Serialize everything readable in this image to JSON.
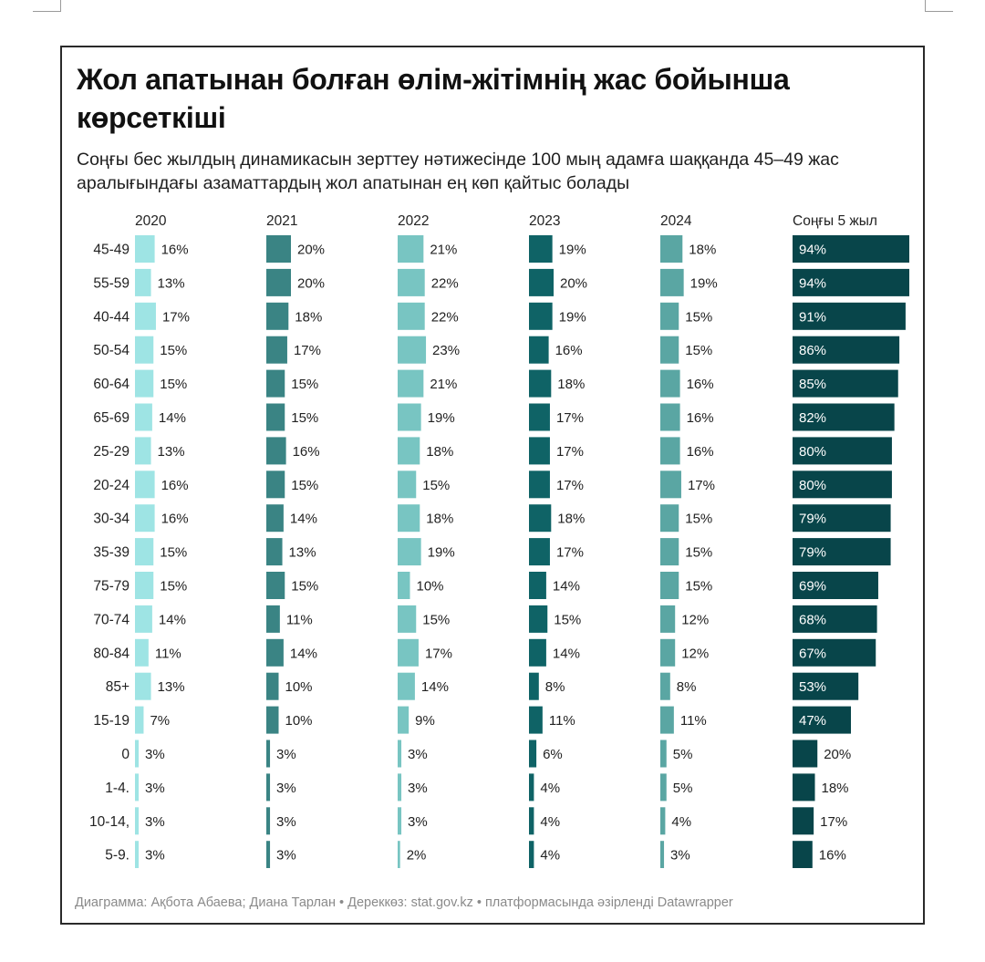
{
  "title": "Жол апатынан болған өлім-жітімнің жас бойынша көрсеткіші",
  "subtitle": "Соңғы бес жылдың динамикасын зерттеу нәтижесінде 100 мың адамға шаққанда 45–49 жас аралығындағы азаматтардың жол апатынан ең көп қайтыс болады",
  "footer": "Диаграмма: Ақбота Абаева; Диана Тарлан • Дереккөз: stat.gov.kz • платформасында әзірленді Datawrapper",
  "colors": {
    "series": [
      "#9ee4e4",
      "#3a8484",
      "#78c5c2",
      "#0f6366",
      "#5aa6a3",
      "#08454a"
    ],
    "label_dark": "#222222",
    "label_light": "#ffffff"
  },
  "chart_data": {
    "type": "bar",
    "layout": "small-multiples",
    "value_unit": "%",
    "categories": [
      "45-49",
      "55-59",
      "40-44",
      "50-54",
      "60-64",
      "65-69",
      "25-29",
      "20-24",
      "30-34",
      "35-39",
      "75-79",
      "70-74",
      "80-84",
      "85+",
      "15-19",
      "0",
      "1-4.",
      "10-14,",
      "5-9."
    ],
    "series": [
      {
        "name": "2020",
        "values": [
          16,
          13,
          17,
          15,
          15,
          14,
          13,
          16,
          16,
          15,
          15,
          14,
          11,
          13,
          7,
          3,
          3,
          3,
          3
        ]
      },
      {
        "name": "2021",
        "values": [
          20,
          20,
          18,
          17,
          15,
          15,
          16,
          15,
          14,
          13,
          15,
          11,
          14,
          10,
          10,
          3,
          3,
          3,
          3
        ]
      },
      {
        "name": "2022",
        "values": [
          21,
          22,
          22,
          23,
          21,
          19,
          18,
          15,
          18,
          19,
          10,
          15,
          17,
          14,
          9,
          3,
          3,
          3,
          2
        ]
      },
      {
        "name": "2023",
        "values": [
          19,
          20,
          19,
          16,
          18,
          17,
          17,
          17,
          18,
          17,
          14,
          15,
          14,
          8,
          11,
          6,
          4,
          4,
          4
        ]
      },
      {
        "name": "2024",
        "values": [
          18,
          19,
          15,
          15,
          16,
          16,
          16,
          17,
          15,
          15,
          15,
          12,
          12,
          8,
          11,
          5,
          5,
          4,
          3
        ]
      },
      {
        "name": "Соңғы 5 жыл",
        "values": [
          94,
          94,
          91,
          86,
          85,
          82,
          80,
          80,
          79,
          79,
          69,
          68,
          67,
          53,
          47,
          20,
          18,
          17,
          16
        ]
      }
    ]
  }
}
